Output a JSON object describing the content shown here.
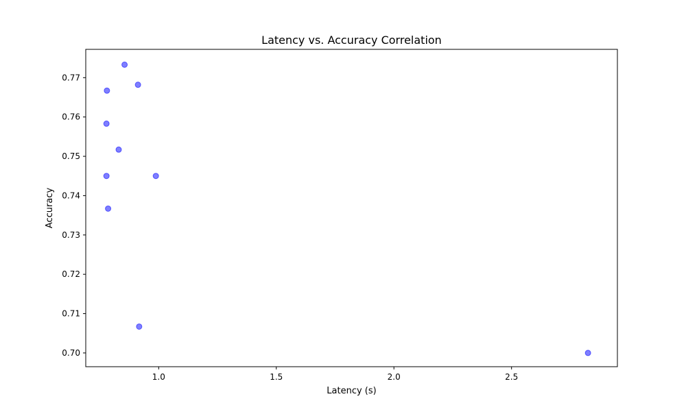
{
  "chart_data": {
    "type": "scatter",
    "title": "Latency vs. Accuracy Correlation",
    "xlabel": "Latency (s)",
    "ylabel": "Accuracy",
    "xlim": [
      0.69,
      2.95
    ],
    "ylim": [
      0.6965,
      0.7772
    ],
    "xticks": [
      1.0,
      1.5,
      2.0,
      2.5
    ],
    "xtick_labels": [
      "1.0",
      "1.5",
      "2.0",
      "2.5"
    ],
    "yticks": [
      0.7,
      0.71,
      0.72,
      0.73,
      0.74,
      0.75,
      0.76,
      0.77
    ],
    "ytick_labels": [
      "0.70",
      "0.71",
      "0.72",
      "0.73",
      "0.74",
      "0.75",
      "0.76",
      "0.77"
    ],
    "grid": false,
    "marker_color": "#0000ff",
    "marker_alpha": 0.5,
    "points": [
      {
        "x": 0.855,
        "y": 0.7733
      },
      {
        "x": 0.912,
        "y": 0.7682
      },
      {
        "x": 0.78,
        "y": 0.7667
      },
      {
        "x": 0.778,
        "y": 0.7583
      },
      {
        "x": 0.83,
        "y": 0.7517
      },
      {
        "x": 0.778,
        "y": 0.745
      },
      {
        "x": 0.988,
        "y": 0.745
      },
      {
        "x": 0.785,
        "y": 0.7367
      },
      {
        "x": 0.917,
        "y": 0.7067
      },
      {
        "x": 2.825,
        "y": 0.7
      }
    ]
  }
}
